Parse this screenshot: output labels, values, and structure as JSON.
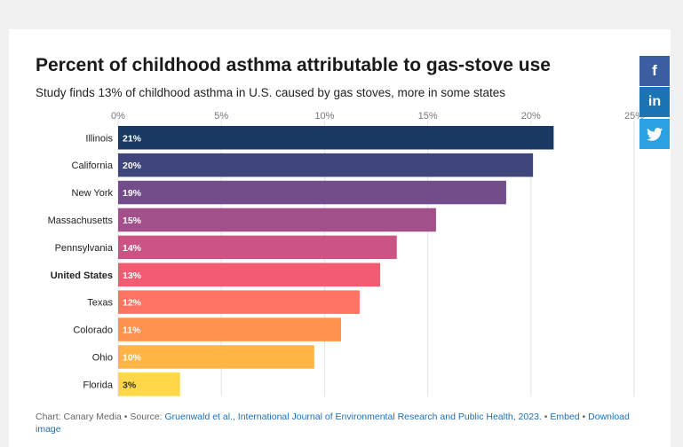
{
  "share": {
    "facebook_icon": "f",
    "linkedin_icon": "in",
    "twitter_icon": "twitter-bird"
  },
  "footer": {
    "prefix": "Chart: Canary Media • Source: ",
    "source_link": "Gruenwald et al., International Journal of Environmental Research and Public Health, 2023.",
    "sep1": " • ",
    "embed_link": "Embed",
    "sep2": " • ",
    "download_link": "Download image"
  },
  "chart_data": {
    "type": "bar",
    "orientation": "horizontal",
    "title": "Percent of childhood asthma attributable to gas-stove use",
    "subtitle": "Study finds 13% of childhood asthma in U.S. caused by gas stoves, more in some states",
    "categories": [
      "Illinois",
      "California",
      "New York",
      "Massachusetts",
      "Pennsylvania",
      "United States",
      "Texas",
      "Colorado",
      "Ohio",
      "Florida"
    ],
    "highlight_category": "United States",
    "values": [
      21.1,
      20.1,
      18.8,
      15.4,
      13.5,
      12.7,
      11.7,
      10.8,
      9.5,
      3.0
    ],
    "value_labels": [
      "21%",
      "20%",
      "19%",
      "15%",
      "14%",
      "13%",
      "12%",
      "11%",
      "10%",
      "3%"
    ],
    "colors": [
      "#183a63",
      "#3f467c",
      "#734d8a",
      "#a1508a",
      "#cc5484",
      "#f15c73",
      "#fd7562",
      "#ff934d",
      "#ffb443",
      "#ffd84a"
    ],
    "ticks": [
      0,
      5,
      10,
      15,
      20,
      25
    ],
    "tick_labels": [
      "0%",
      "5%",
      "10%",
      "15%",
      "20%",
      "25%"
    ],
    "xlim": [
      0,
      25
    ],
    "grid": true
  }
}
